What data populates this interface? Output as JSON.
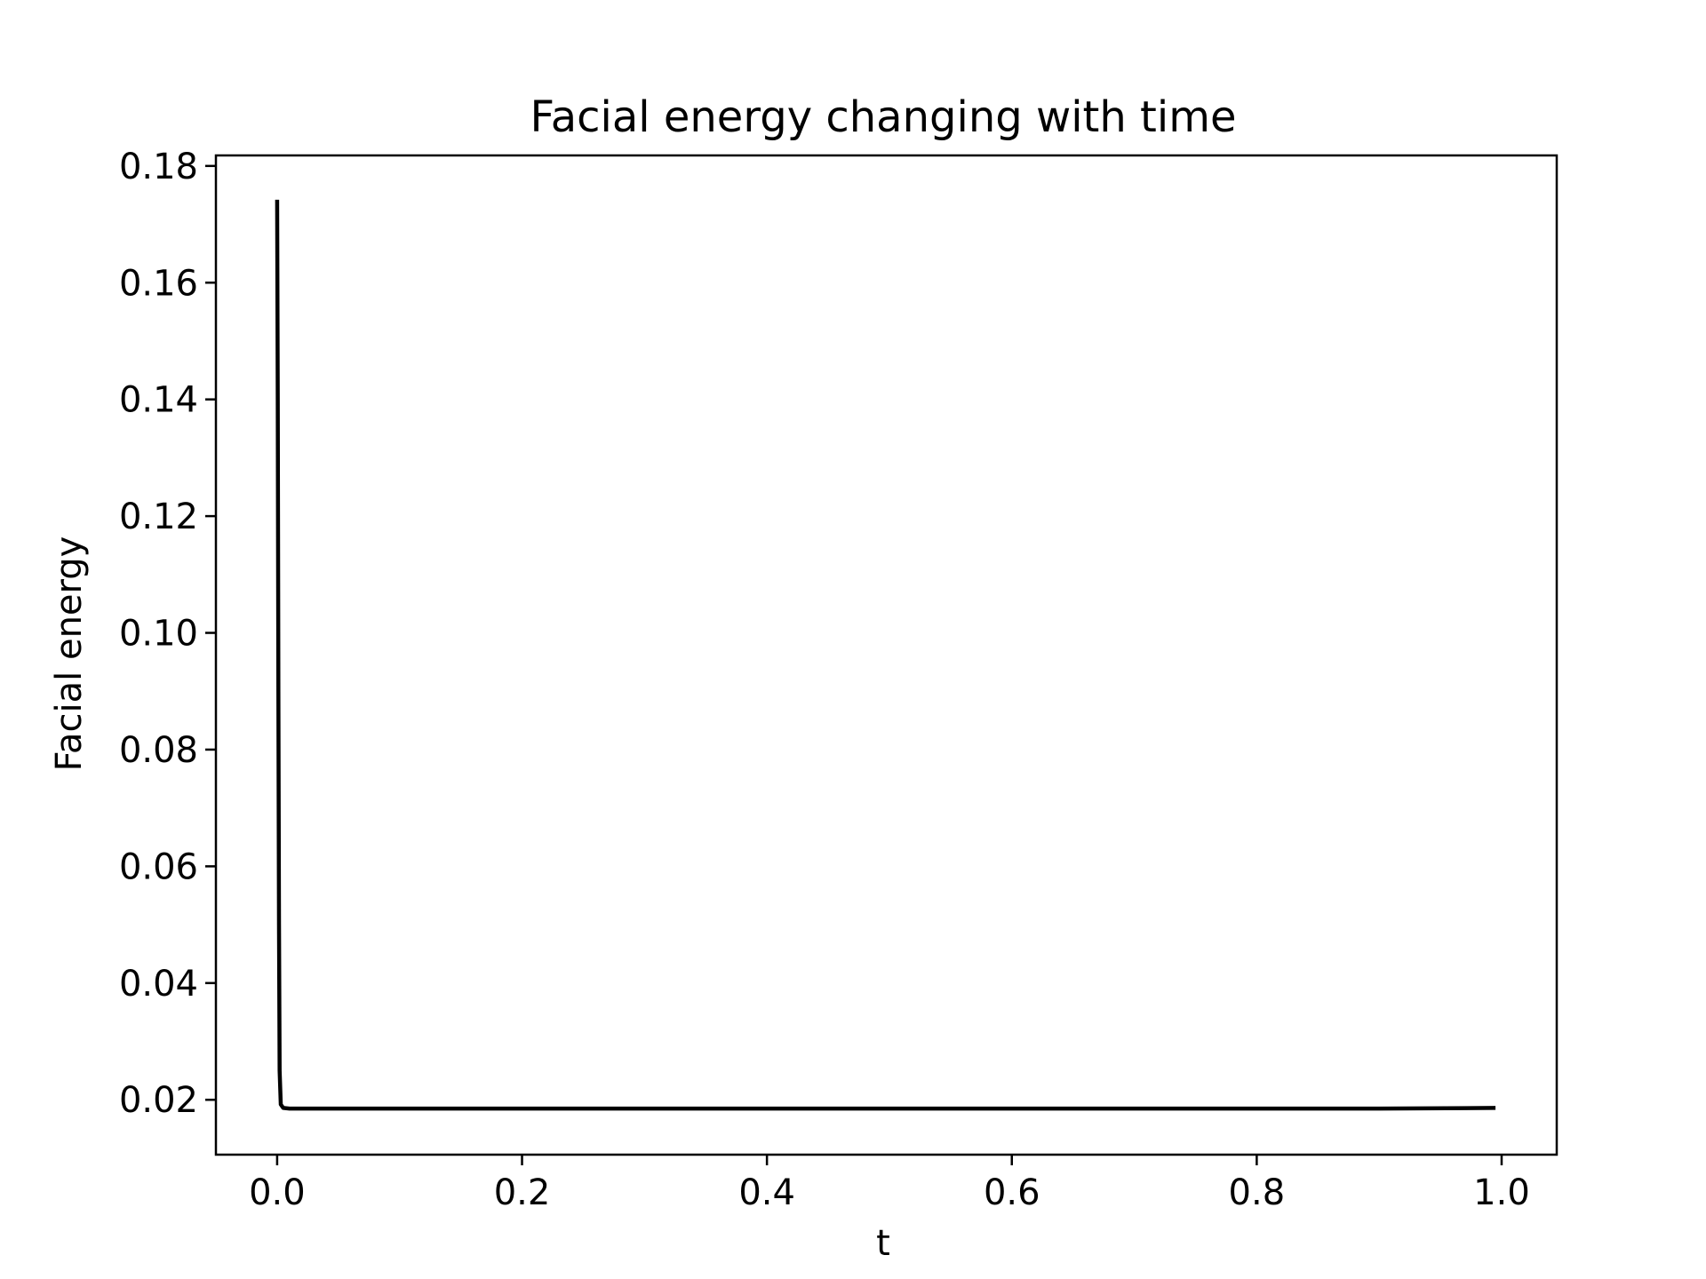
{
  "chart_data": {
    "type": "line",
    "title": "Facial energy changing with time",
    "xlabel": "t",
    "ylabel": "Facial energy",
    "xlim": [
      -0.05,
      1.045
    ],
    "ylim": [
      0.0106,
      0.1818
    ],
    "xticks": [
      0.0,
      0.2,
      0.4,
      0.6,
      0.8,
      1.0
    ],
    "xtick_labels": [
      "0.0",
      "0.2",
      "0.4",
      "0.6",
      "0.8",
      "1.0"
    ],
    "yticks": [
      0.02,
      0.04,
      0.06,
      0.08,
      0.1,
      0.12,
      0.14,
      0.16,
      0.18
    ],
    "ytick_labels": [
      "0.02",
      "0.04",
      "0.06",
      "0.08",
      "0.10",
      "0.12",
      "0.14",
      "0.16",
      "0.18"
    ],
    "grid": false,
    "series": [
      {
        "color": "#000000",
        "x": [
          0.0,
          0.0005,
          0.001,
          0.0015,
          0.002,
          0.003,
          0.005,
          0.01,
          0.02,
          0.05,
          0.1,
          0.2,
          0.3,
          0.4,
          0.5,
          0.6,
          0.7,
          0.8,
          0.9,
          0.995
        ],
        "y": [
          0.1742,
          0.14,
          0.09,
          0.05,
          0.025,
          0.0192,
          0.0186,
          0.0185,
          0.0185,
          0.0185,
          0.0185,
          0.0185,
          0.0185,
          0.0185,
          0.0185,
          0.0185,
          0.0185,
          0.0185,
          0.0185,
          0.0186
        ]
      }
    ]
  }
}
